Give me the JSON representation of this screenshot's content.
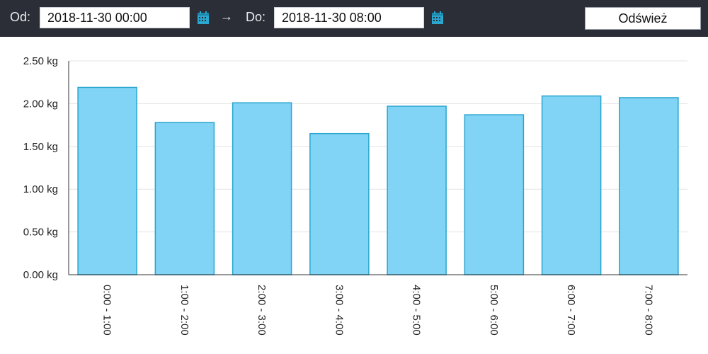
{
  "toolbar": {
    "from_label": "Od:",
    "from_value": "2018-11-30 00:00",
    "arrow": "→",
    "to_label": "Do:",
    "to_value": "2018-11-30 08:00",
    "refresh_label": "Odśwież",
    "calendar_icon": "calendar-icon",
    "background": "#2b2e37"
  },
  "chart_data": {
    "type": "bar",
    "title": "",
    "xlabel": "",
    "ylabel": "",
    "categories": [
      "0:00 - 1:00",
      "1:00 - 2:00",
      "2:00 - 3:00",
      "3:00 - 4:00",
      "4:00 - 5:00",
      "5:00 - 6:00",
      "6:00 - 7:00",
      "7:00 - 8:00"
    ],
    "values": [
      2.19,
      1.78,
      2.01,
      1.65,
      1.97,
      1.87,
      2.09,
      2.07
    ],
    "ylim": [
      0,
      2.5
    ],
    "yticks": [
      "0.00 kg",
      "0.50 kg",
      "1.00 kg",
      "1.50 kg",
      "2.00 kg",
      "2.50 kg"
    ],
    "grid": true,
    "bar_fill": "#81d4f5",
    "bar_stroke": "#2aa6cf"
  }
}
